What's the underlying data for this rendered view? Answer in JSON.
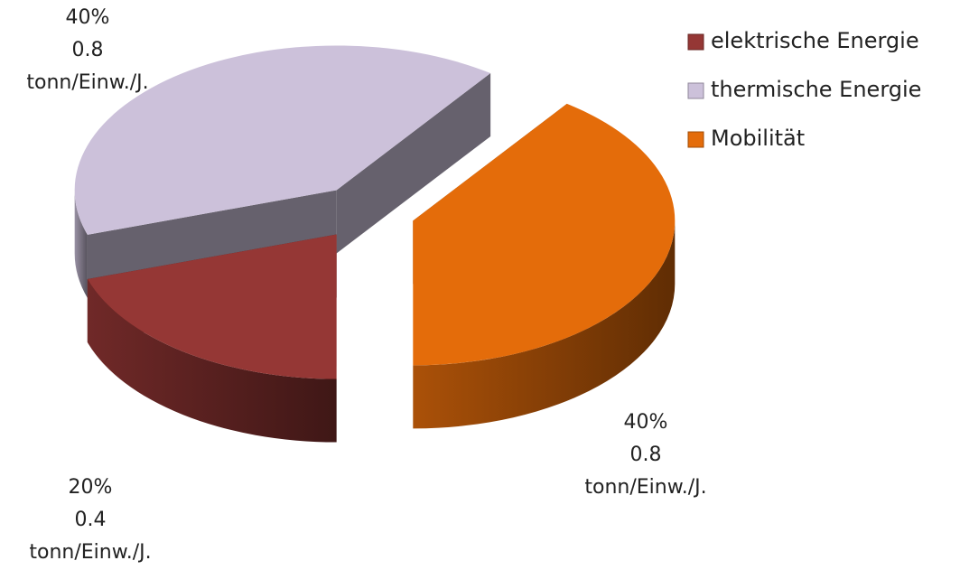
{
  "chart_data": {
    "type": "pie3d",
    "categories": [
      "elektrische Energie",
      "thermische Energie",
      "Mobilität"
    ],
    "values": [
      20,
      40,
      40
    ],
    "value_labels": [
      "20%",
      "40%",
      "40%"
    ],
    "amounts": [
      0.4,
      0.8,
      0.8
    ],
    "unit": "tonn/Einw./J.",
    "colors": [
      "#953735",
      "#ccc1da",
      "#e46c0a"
    ],
    "legend": "top-right"
  }
}
